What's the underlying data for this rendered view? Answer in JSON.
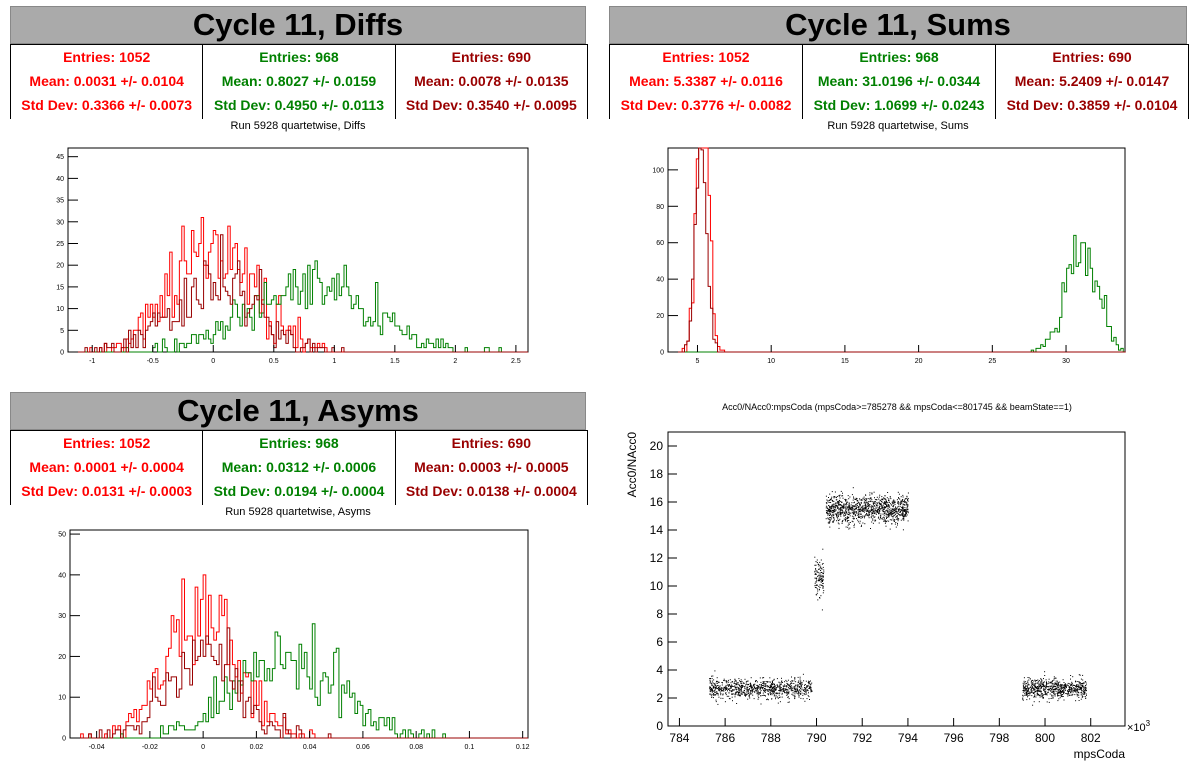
{
  "colors": {
    "red": "#ff0000",
    "green": "#008000",
    "darkred": "#990000",
    "title_bg": "#aaaaaa"
  },
  "panels": {
    "diffs": {
      "title": "Cycle 11, Diffs",
      "subtitle": "Run 5928 quartetwise, Diffs",
      "stats": [
        {
          "entries": "Entries: 1052",
          "mean": "Mean: 0.0031 +/- 0.0104",
          "std": "Std Dev: 0.3366 +/- 0.0073"
        },
        {
          "entries": "Entries: 968",
          "mean": "Mean: 0.8027 +/- 0.0159",
          "std": "Std Dev: 0.4950 +/- 0.0113"
        },
        {
          "entries": "Entries: 690",
          "mean": "Mean: 0.0078 +/- 0.0135",
          "std": "Std Dev: 0.3540 +/- 0.0095"
        }
      ]
    },
    "sums": {
      "title": "Cycle 11, Sums",
      "subtitle": "Run 5928 quartetwise, Sums",
      "stats": [
        {
          "entries": "Entries: 1052",
          "mean": "Mean: 5.3387 +/- 0.0116",
          "std": "Std Dev: 0.3776 +/- 0.0082"
        },
        {
          "entries": "Entries: 968",
          "mean": "Mean: 31.0196 +/- 0.0344",
          "std": "Std Dev: 1.0699 +/- 0.0243"
        },
        {
          "entries": "Entries: 690",
          "mean": "Mean: 5.2409 +/- 0.0147",
          "std": "Std Dev: 0.3859 +/- 0.0104"
        }
      ]
    },
    "asyms": {
      "title": "Cycle 11, Asyms",
      "subtitle": "Run 5928 quartetwise, Asyms",
      "stats": [
        {
          "entries": "Entries: 1052",
          "mean": "Mean: 0.0001 +/- 0.0004",
          "std": "Std Dev: 0.0131 +/- 0.0003"
        },
        {
          "entries": "Entries: 968",
          "mean": "Mean: 0.0312 +/- 0.0006",
          "std": "Std Dev: 0.0194 +/- 0.0004"
        },
        {
          "entries": "Entries: 690",
          "mean": "Mean: 0.0003 +/- 0.0005",
          "std": "Std Dev: 0.0138 +/- 0.0004"
        }
      ]
    },
    "scatter": {
      "title": "Acc0/NAcc0:mpsCoda (mpsCoda>=785278 && mpsCoda<=801745 && beamState==1)",
      "xlabel": "mpsCoda",
      "ylabel": "Acc0/NAcc0",
      "exponent_prefix": "×10",
      "exponent_power": "3"
    }
  },
  "chart_data": [
    {
      "type": "histogram",
      "id": "diffs",
      "title": "Run 5928 quartetwise, Diffs",
      "xlim": [
        -1.2,
        2.6
      ],
      "ylim": [
        0,
        47
      ],
      "xticks": [
        -1,
        -0.5,
        0,
        0.5,
        1,
        1.5,
        2,
        2.5
      ],
      "xticklabels": [
        "-1",
        "-0.5",
        "0",
        "0.5",
        "1",
        "1.5",
        "2",
        "2.5"
      ],
      "yticks": [
        0,
        5,
        10,
        15,
        20,
        25,
        30,
        35,
        40,
        45
      ],
      "series": [
        {
          "color": "red",
          "entries": 1052,
          "mean": 0.0031,
          "std": 0.3366
        },
        {
          "color": "green",
          "entries": 968,
          "mean": 0.8027,
          "std": 0.495
        },
        {
          "color": "darkred",
          "entries": 690,
          "mean": 0.0078,
          "std": 0.354
        }
      ],
      "bin_width": 0.02
    },
    {
      "type": "histogram",
      "id": "sums",
      "title": "Run 5928 quartetwise, Sums",
      "xlim": [
        3,
        34
      ],
      "ylim": [
        0,
        112
      ],
      "xticks": [
        5,
        10,
        15,
        20,
        25,
        30
      ],
      "xticklabels": [
        "5",
        "10",
        "15",
        "20",
        "25",
        "30"
      ],
      "yticks": [
        0,
        20,
        40,
        60,
        80,
        100
      ],
      "series": [
        {
          "color": "red",
          "entries": 1052,
          "mean": 5.3387,
          "std": 0.3776
        },
        {
          "color": "green",
          "entries": 968,
          "mean": 31.0196,
          "std": 1.0699
        },
        {
          "color": "darkred",
          "entries": 690,
          "mean": 5.2409,
          "std": 0.3859
        }
      ],
      "bin_width": 0.16
    },
    {
      "type": "histogram",
      "id": "asyms",
      "title": "Run 5928 quartetwise, Asyms",
      "xlim": [
        -0.05,
        0.122
      ],
      "ylim": [
        0,
        51
      ],
      "xticks": [
        -0.04,
        -0.02,
        0,
        0.02,
        0.04,
        0.06,
        0.08,
        0.1,
        0.12
      ],
      "xticklabels": [
        "-0.04",
        "-0.02",
        "0",
        "0.02",
        "0.04",
        "0.06",
        "0.08",
        "0.1",
        "0.12"
      ],
      "yticks": [
        0,
        10,
        20,
        30,
        40,
        50
      ],
      "series": [
        {
          "color": "red",
          "entries": 1052,
          "mean": 0.0001,
          "std": 0.0131
        },
        {
          "color": "green",
          "entries": 968,
          "mean": 0.0312,
          "std": 0.0194
        },
        {
          "color": "darkred",
          "entries": 690,
          "mean": 0.0003,
          "std": 0.0138
        }
      ],
      "bin_width": 0.001
    },
    {
      "type": "scatter",
      "id": "scatter",
      "title": "Acc0/NAcc0:mpsCoda (mpsCoda>=785278 && mpsCoda<=801745 && beamState==1)",
      "xlabel": "mpsCoda",
      "ylabel": "Acc0/NAcc0",
      "xlim": [
        783.5,
        803.5
      ],
      "ylim": [
        0,
        21
      ],
      "xticks": [
        784,
        786,
        788,
        790,
        792,
        794,
        796,
        798,
        800,
        802
      ],
      "yticks": [
        0,
        2,
        4,
        6,
        8,
        10,
        12,
        14,
        16,
        18,
        20
      ],
      "clusters": [
        {
          "x_range": [
            785.3,
            789.8
          ],
          "y_mean": 2.7,
          "y_spread": 0.35,
          "n": 900
        },
        {
          "x_range": [
            789.9,
            790.3
          ],
          "y_mean": 10.5,
          "y_spread": 0.7,
          "n": 120
        },
        {
          "x_range": [
            790.4,
            794.0
          ],
          "y_mean": 15.5,
          "y_spread": 0.5,
          "n": 1100
        },
        {
          "x_range": [
            799.0,
            801.8
          ],
          "y_mean": 2.7,
          "y_spread": 0.35,
          "n": 700
        }
      ]
    }
  ]
}
